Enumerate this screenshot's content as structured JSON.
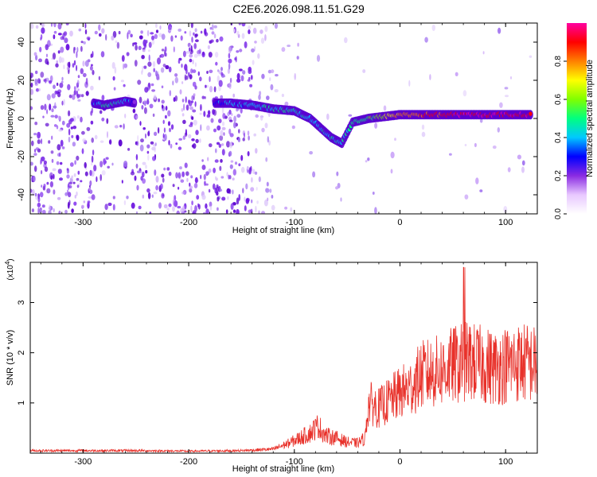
{
  "title": "C2E6.2026.098.11.51.G29",
  "chart_data": [
    {
      "type": "heatmap",
      "name": "spectrogram",
      "xlabel": "Height of straight line (km)",
      "ylabel": "Frequency (Hz)",
      "xlim": [
        -350,
        130
      ],
      "ylim": [
        -50,
        50
      ],
      "xticks": [
        -300,
        -200,
        -100,
        0,
        100
      ],
      "yticks": [
        -40,
        -20,
        0,
        20,
        40
      ],
      "grid": false,
      "colorbar": {
        "label": "Normalized spectral amplitude",
        "range": [
          0,
          1
        ],
        "ticks": [
          "0.0",
          "0.2",
          "0.4",
          "0.6",
          "0.8"
        ],
        "colors": [
          "#ffffff",
          "#e8c8ff",
          "#8a2be2",
          "#0000ff",
          "#00c8ff",
          "#00ff80",
          "#80ff00",
          "#ffff00",
          "#ff8000",
          "#ff0000",
          "#ff00a0"
        ]
      },
      "signal_track": [
        {
          "x": -290,
          "y": 8,
          "amp": 0.35
        },
        {
          "x": -280,
          "y": 7,
          "amp": 0.45
        },
        {
          "x": -270,
          "y": 8,
          "amp": 0.45
        },
        {
          "x": -260,
          "y": 9,
          "amp": 0.4
        },
        {
          "x": -250,
          "y": 8,
          "amp": 0.2
        },
        {
          "x": -175,
          "y": 8,
          "amp": 0.3
        },
        {
          "x": -160,
          "y": 8,
          "amp": 0.4
        },
        {
          "x": -140,
          "y": 7,
          "amp": 0.4
        },
        {
          "x": -120,
          "y": 5,
          "amp": 0.45
        },
        {
          "x": -100,
          "y": 4,
          "amp": 0.45
        },
        {
          "x": -85,
          "y": 0,
          "amp": 0.4
        },
        {
          "x": -75,
          "y": -5,
          "amp": 0.4
        },
        {
          "x": -65,
          "y": -10,
          "amp": 0.45
        },
        {
          "x": -55,
          "y": -13,
          "amp": 0.4
        },
        {
          "x": -45,
          "y": -2,
          "amp": 0.5
        },
        {
          "x": -30,
          "y": 0,
          "amp": 0.55
        },
        {
          "x": -15,
          "y": 1,
          "amp": 0.65
        },
        {
          "x": 0,
          "y": 2,
          "amp": 0.8
        },
        {
          "x": 20,
          "y": 2,
          "amp": 0.85
        },
        {
          "x": 40,
          "y": 2,
          "amp": 0.9
        },
        {
          "x": 60,
          "y": 2,
          "amp": 0.95
        },
        {
          "x": 80,
          "y": 2,
          "amp": 0.95
        },
        {
          "x": 100,
          "y": 2,
          "amp": 0.95
        },
        {
          "x": 125,
          "y": 2,
          "amp": 0.9
        }
      ]
    },
    {
      "type": "line",
      "name": "snr",
      "xlabel": "Height of straight line (km)",
      "ylabel": "SNR (10 * v/v)",
      "scale_label": "(x10",
      "scale_exponent": "4",
      "scale_close": ")",
      "xlim": [
        -350,
        130
      ],
      "ylim": [
        0,
        3.8
      ],
      "xticks": [
        -300,
        -200,
        -100,
        0,
        100
      ],
      "yticks": [
        1,
        2,
        3
      ],
      "grid": false,
      "series": [
        {
          "name": "SNR",
          "color": "#e8312a",
          "x": [
            -350,
            -300,
            -250,
            -200,
            -150,
            -120,
            -105,
            -95,
            -85,
            -78,
            -70,
            -60,
            -50,
            -40,
            -33,
            -31,
            -29,
            -25,
            -20,
            -10,
            0,
            10,
            20,
            30,
            40,
            50,
            60,
            62,
            70,
            80,
            90,
            100,
            110,
            120,
            130
          ],
          "y": [
            0.05,
            0.05,
            0.05,
            0.04,
            0.05,
            0.08,
            0.2,
            0.3,
            0.4,
            0.55,
            0.35,
            0.3,
            0.22,
            0.2,
            0.3,
            0.8,
            1.0,
            0.95,
            0.9,
            1.05,
            1.2,
            1.3,
            1.55,
            1.6,
            1.65,
            1.75,
            1.8,
            1.85,
            1.8,
            1.75,
            1.7,
            1.75,
            1.8,
            1.8,
            1.75
          ]
        }
      ]
    }
  ]
}
